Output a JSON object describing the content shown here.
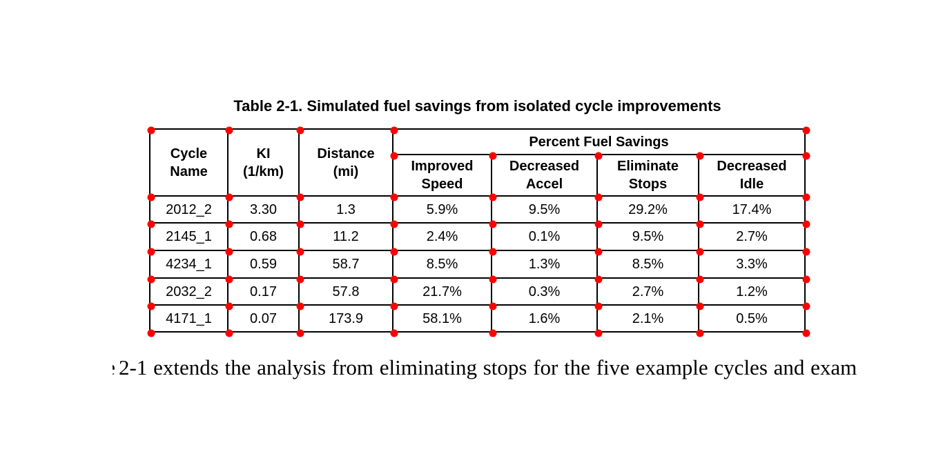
{
  "page": {
    "title": "Table 2-1. Simulated fuel savings from isolated cycle improvements"
  },
  "table": {
    "column_headers": {
      "cycle_name": "Cycle\nName",
      "ki": "KI\n(1/km)",
      "distance": "Distance\n(mi)",
      "group": "Percent Fuel Savings",
      "improved_speed": "Improved\nSpeed",
      "decreased_accel": "Decreased\nAccel",
      "eliminate_stops": "Eliminate\nStops",
      "decreased_idle": "Decreased\nIdle"
    },
    "rows": [
      {
        "cells": [
          "2012_2",
          "3.30",
          "1.3",
          "5.9%",
          "9.5%",
          "29.2%",
          "17.4%"
        ]
      },
      {
        "cells": [
          "2145_1",
          "0.68",
          "11.2",
          "2.4%",
          "0.1%",
          "9.5%",
          "2.7%"
        ]
      },
      {
        "cells": [
          "4234_1",
          "0.59",
          "58.7",
          "8.5%",
          "1.3%",
          "8.5%",
          "3.3%"
        ]
      },
      {
        "cells": [
          "2032_2",
          "0.17",
          "57.8",
          "21.7%",
          "0.3%",
          "2.7%",
          "1.2%"
        ]
      },
      {
        "cells": [
          "4171_1",
          "0.07",
          "173.9",
          "58.1%",
          "1.6%",
          "2.1%",
          "0.5%"
        ]
      }
    ]
  },
  "body_text": {
    "clipped_prefix": "e",
    "visible": "2-1 extends the analysis from eliminating stops for the five example cycles and exam"
  },
  "colors": {
    "marker": "#ff0000",
    "text": "#000000",
    "background": "#ffffff"
  }
}
